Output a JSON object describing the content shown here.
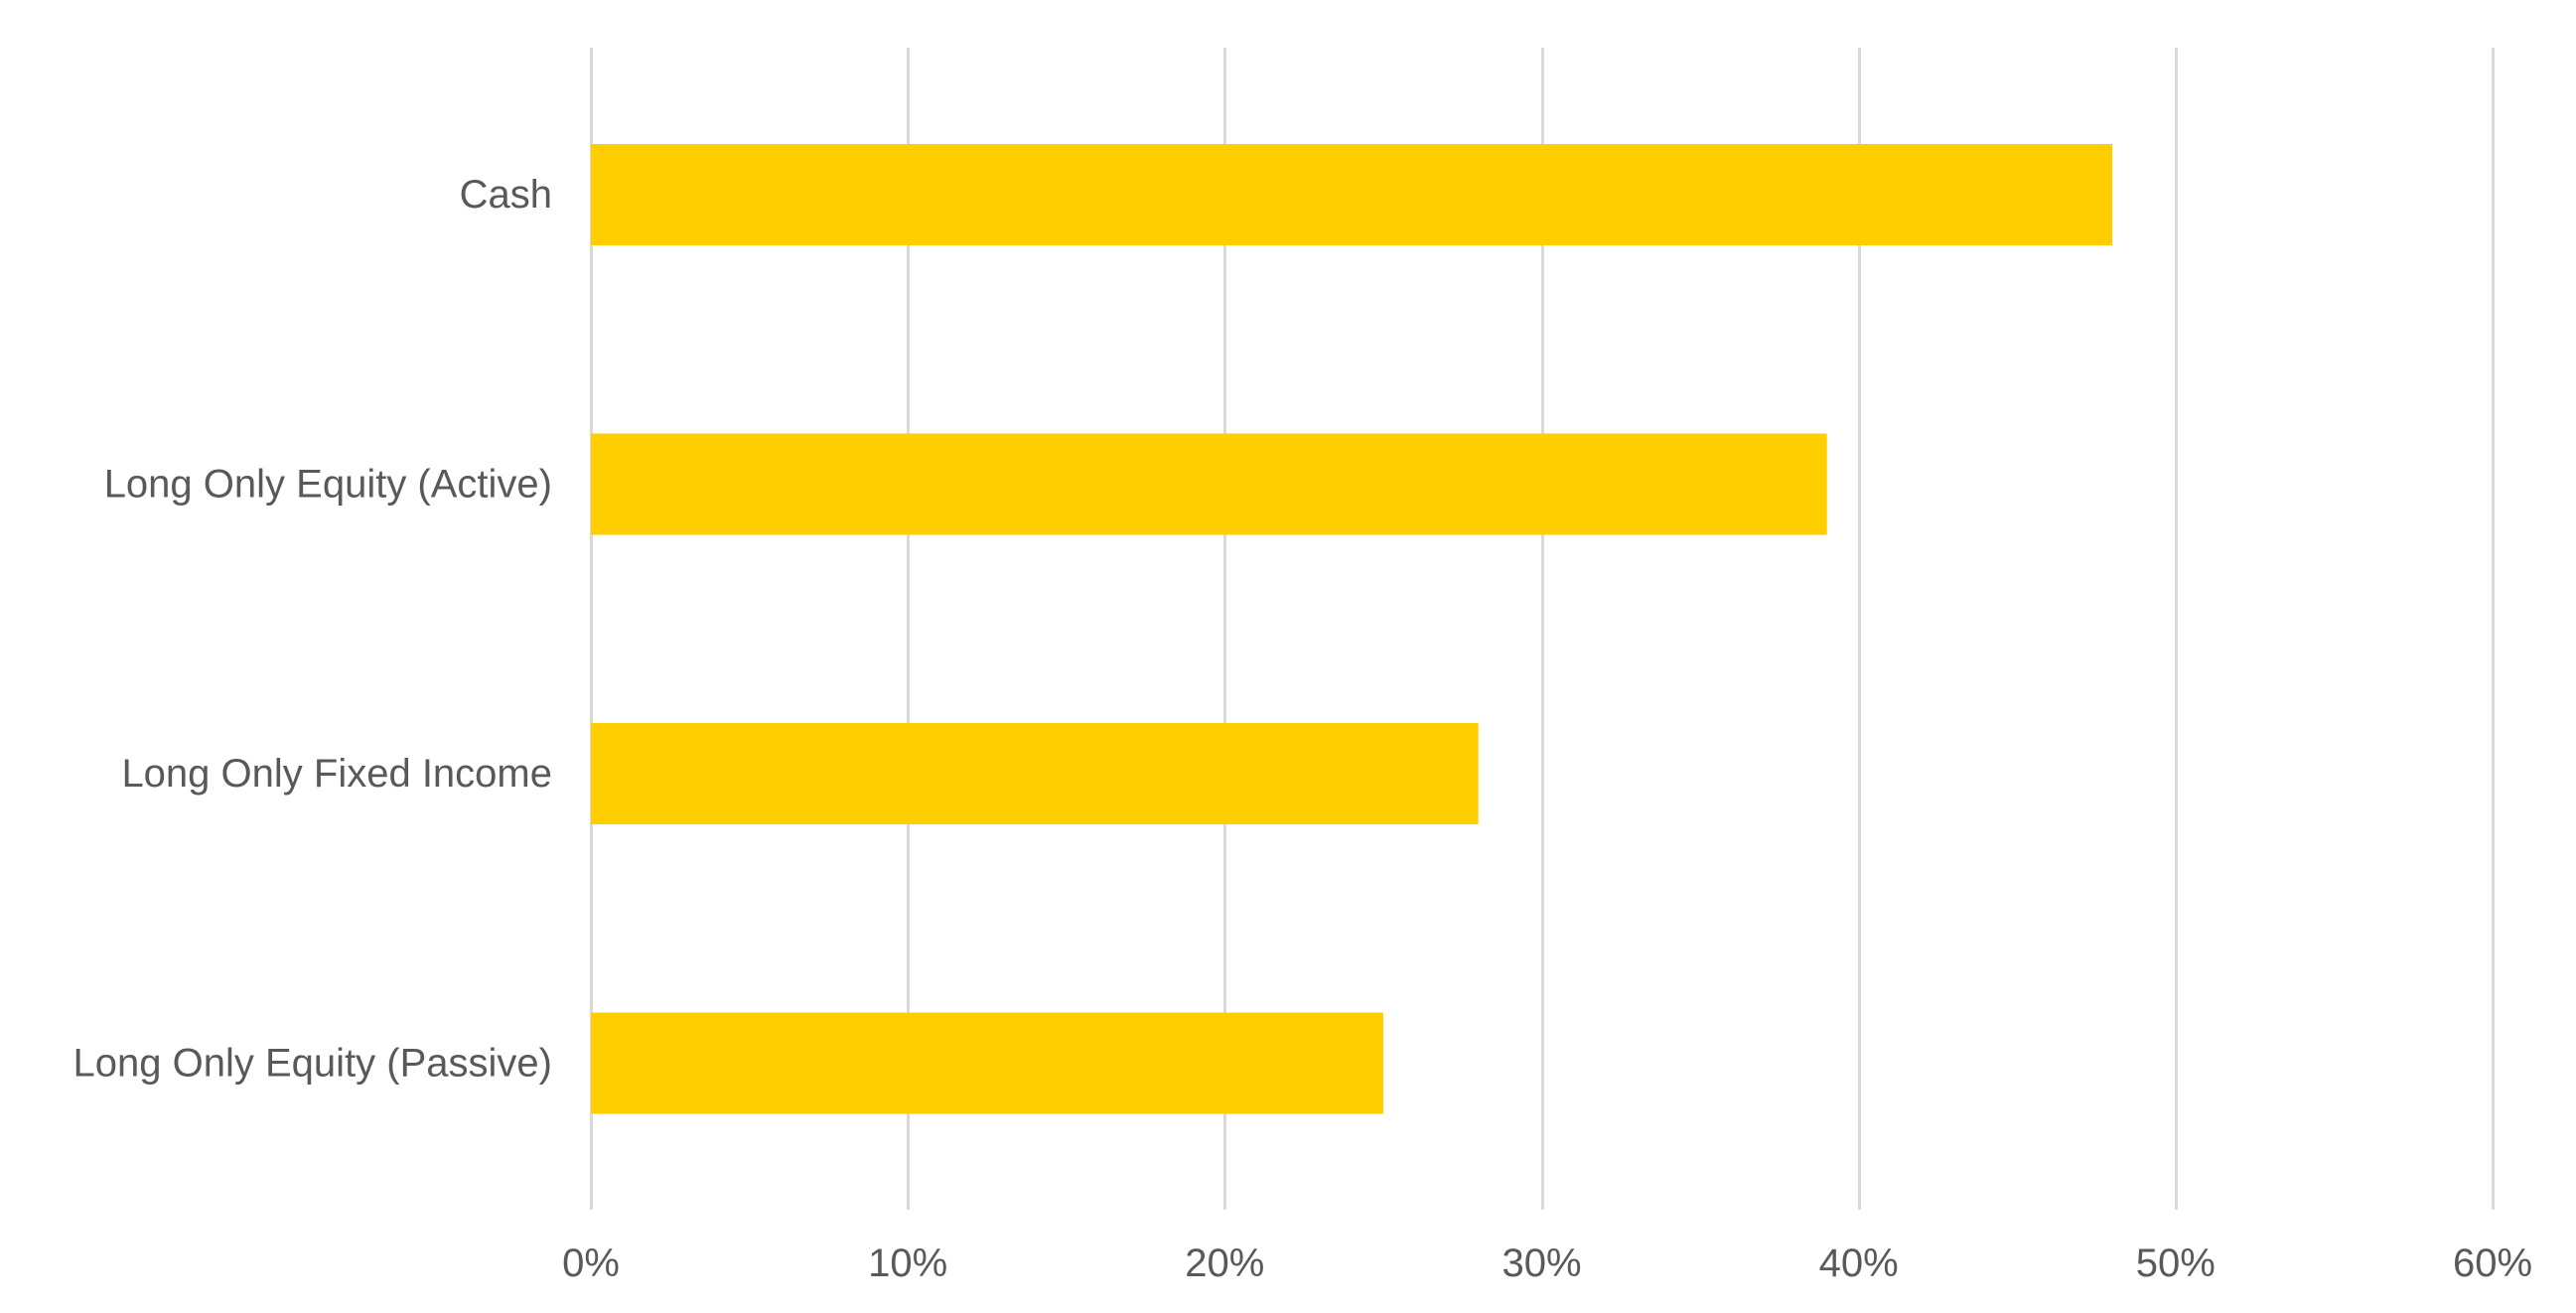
{
  "chart_data": {
    "type": "bar",
    "orientation": "horizontal",
    "categories": [
      "Cash",
      "Long Only Equity (Active)",
      "Long Only Fixed Income",
      "Long Only Equity (Passive)"
    ],
    "values": [
      48,
      39,
      28,
      25
    ],
    "unit": "%",
    "title": "",
    "xlabel": "",
    "ylabel": "",
    "xlim": [
      0,
      60
    ],
    "x_ticks": [
      0,
      10,
      20,
      30,
      40,
      50,
      60
    ],
    "x_tick_labels": [
      "0%",
      "10%",
      "20%",
      "30%",
      "40%",
      "50%",
      "60%"
    ],
    "grid": "vertical",
    "legend": "none",
    "colors": {
      "bar": "#FFCE00",
      "grid": "#D9D9D9",
      "text": "#595959"
    }
  }
}
